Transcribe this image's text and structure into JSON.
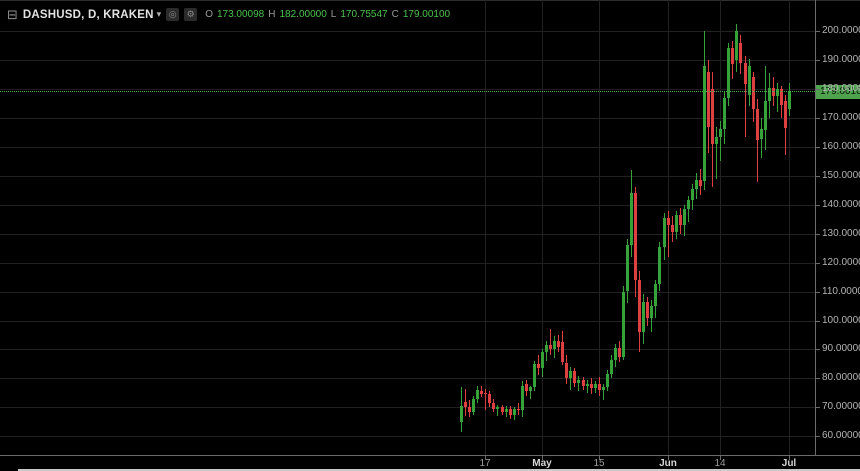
{
  "header": {
    "symbol_title": "DASHUSD, D, KRAKEN",
    "collapse_icon": "⊟",
    "dropdown_icon": "▾",
    "buttons": [
      {
        "name": "visibility-toggle",
        "glyph": "◎"
      },
      {
        "name": "settings",
        "glyph": "⚙"
      }
    ],
    "ohlc": {
      "open_label": "O",
      "open": "173.00098",
      "high_label": "H",
      "high": "182.00000",
      "low_label": "L",
      "low": "170.75547",
      "close_label": "C",
      "close": "179.00100"
    }
  },
  "price_axis": {
    "labels": [
      "200.00000",
      "190.00000",
      "180.00000",
      "170.00000",
      "160.00000",
      "150.00000",
      "140.00000",
      "130.00000",
      "120.00000",
      "110.00000",
      "100.00000",
      "90.00000",
      "80.00000",
      "70.00000",
      "60.00000"
    ],
    "current_price_label": "179.00100"
  },
  "time_axis": {
    "ticks": [
      {
        "label": "17",
        "candle_index": 6,
        "emphasis": false
      },
      {
        "label": "May",
        "candle_index": 20,
        "emphasis": true
      },
      {
        "label": "15",
        "candle_index": 34,
        "emphasis": false
      },
      {
        "label": "Jun",
        "candle_index": 51,
        "emphasis": true
      },
      {
        "label": "14",
        "candle_index": 64,
        "emphasis": false
      },
      {
        "label": "Jul",
        "candle_index": 81,
        "emphasis": true
      }
    ]
  },
  "colors": {
    "background": "#000000",
    "grid": "#212121",
    "up": "#35a23a",
    "down": "#dd4040",
    "last_price": "#4fae50",
    "badge_background": "#4fa34f",
    "axis_text": "#b4b4b4",
    "header_values": "#4cc24c"
  },
  "chart_data": {
    "type": "candlestick",
    "title": "DASHUSD, D, KRAKEN",
    "symbol": "DASHUSD",
    "interval": "D",
    "exchange": "KRAKEN",
    "last": {
      "open": 173.00098,
      "high": 182.0,
      "low": 170.75547,
      "close": 179.001
    },
    "y_axis": {
      "range": [
        60,
        202.5
      ],
      "tick_step": 10,
      "tick_values": [
        200,
        190,
        180,
        170,
        160,
        150,
        140,
        130,
        120,
        110,
        100,
        90,
        80,
        70,
        60
      ]
    },
    "x_axis": {
      "visible_ticks": [
        {
          "label": "17",
          "candle_index": 6
        },
        {
          "label": "May",
          "candle_index": 20
        },
        {
          "label": "15",
          "candle_index": 34
        },
        {
          "label": "Jun",
          "candle_index": 51
        },
        {
          "label": "14",
          "candle_index": 64
        },
        {
          "label": "Jul",
          "candle_index": 81
        }
      ]
    },
    "legend_position": "top-left",
    "grid": true,
    "candles_format": [
      "open",
      "high",
      "low",
      "close"
    ],
    "candles": [
      [
        65,
        77,
        61.5,
        70.5
      ],
      [
        72,
        76.5,
        67,
        70
      ],
      [
        70,
        72.5,
        66.5,
        68.5
      ],
      [
        68.5,
        74,
        67.5,
        73
      ],
      [
        73,
        77.5,
        71.5,
        76
      ],
      [
        75.5,
        77.5,
        73.5,
        74.5
      ],
      [
        75,
        76.5,
        69,
        74.5
      ],
      [
        74.5,
        75.5,
        70,
        71.5
      ],
      [
        71.5,
        73,
        68.5,
        69.5
      ],
      [
        69.5,
        71,
        67,
        70
      ],
      [
        70,
        71,
        67.5,
        68.5
      ],
      [
        68.5,
        70.5,
        66.5,
        69.5
      ],
      [
        69.5,
        70.5,
        66,
        67.5
      ],
      [
        67.5,
        70,
        65.5,
        69.5
      ],
      [
        69.5,
        71.5,
        67.5,
        69
      ],
      [
        69,
        79,
        66.5,
        77.5
      ],
      [
        78,
        79.5,
        74,
        75.5
      ],
      [
        75.5,
        77.5,
        73,
        77
      ],
      [
        77,
        86,
        75.5,
        85
      ],
      [
        85,
        88,
        81,
        83.5
      ],
      [
        83.5,
        90,
        80.5,
        89
      ],
      [
        89,
        93,
        86,
        91.5
      ],
      [
        91.5,
        97,
        88,
        90
      ],
      [
        90,
        94.5,
        87,
        93
      ],
      [
        93,
        95,
        89,
        91
      ],
      [
        92.5,
        96.5,
        84.5,
        85.5
      ],
      [
        85.5,
        88,
        78,
        80
      ],
      [
        80,
        84,
        76,
        82.5
      ],
      [
        82.5,
        83.5,
        77,
        78.5
      ],
      [
        78.5,
        81,
        75.5,
        79.5
      ],
      [
        79.5,
        80.5,
        76,
        77.5
      ],
      [
        77.5,
        79.5,
        75,
        78
      ],
      [
        78,
        80,
        74.5,
        76.5
      ],
      [
        76.5,
        79,
        75,
        78
      ],
      [
        78,
        80.5,
        74,
        76
      ],
      [
        76,
        78,
        72.5,
        77
      ],
      [
        77,
        83,
        75.5,
        81.5
      ],
      [
        81.5,
        88,
        80,
        86.5
      ],
      [
        86.5,
        92,
        84,
        90.5
      ],
      [
        90.5,
        93,
        85.5,
        87.5
      ],
      [
        87.5,
        112,
        86.5,
        110
      ],
      [
        110,
        128,
        106,
        126
      ],
      [
        126,
        152,
        122,
        144
      ],
      [
        144,
        146,
        108,
        114
      ],
      [
        114,
        117,
        89,
        96
      ],
      [
        96,
        109,
        92,
        106.5
      ],
      [
        106.5,
        108,
        98,
        101
      ],
      [
        101,
        107,
        96,
        105
      ],
      [
        105,
        114,
        101,
        112.5
      ],
      [
        112.5,
        127,
        110,
        125.5
      ],
      [
        125.5,
        137,
        121,
        135.5
      ],
      [
        135.5,
        138,
        122,
        133
      ],
      [
        133,
        136,
        127,
        130.5
      ],
      [
        130.5,
        138,
        128,
        136.5
      ],
      [
        136.5,
        139,
        130,
        133
      ],
      [
        133,
        140,
        129,
        138.5
      ],
      [
        138.5,
        143,
        134,
        141.5
      ],
      [
        141.5,
        147,
        138,
        145.5
      ],
      [
        145.5,
        151,
        142,
        148.5
      ],
      [
        148.5,
        152.5,
        143.5,
        146.5
      ],
      [
        148,
        200,
        145,
        188
      ],
      [
        186,
        190,
        158,
        167
      ],
      [
        180,
        186,
        146,
        161
      ],
      [
        161,
        167,
        149,
        163.5
      ],
      [
        163.5,
        169,
        155,
        166
      ],
      [
        166,
        179,
        161,
        177
      ],
      [
        177,
        196,
        174,
        194
      ],
      [
        194,
        196.5,
        183.5,
        188.5
      ],
      [
        190,
        202.5,
        186,
        200
      ],
      [
        196,
        198.5,
        185,
        189
      ],
      [
        189,
        191.5,
        163.5,
        181.5
      ],
      [
        178,
        190.5,
        174,
        188
      ],
      [
        184,
        186,
        168.5,
        173
      ],
      [
        173,
        176.5,
        148,
        162.5
      ],
      [
        162.5,
        170,
        156,
        166
      ],
      [
        166,
        188,
        159,
        176
      ],
      [
        176,
        185.5,
        170,
        180.5
      ],
      [
        180.5,
        184,
        174,
        177.5
      ],
      [
        177.5,
        182,
        172,
        180
      ],
      [
        180,
        181,
        170,
        174.5
      ],
      [
        176,
        178,
        157,
        166.5
      ],
      [
        173.00098,
        182,
        170.75547,
        179.001
      ]
    ]
  }
}
